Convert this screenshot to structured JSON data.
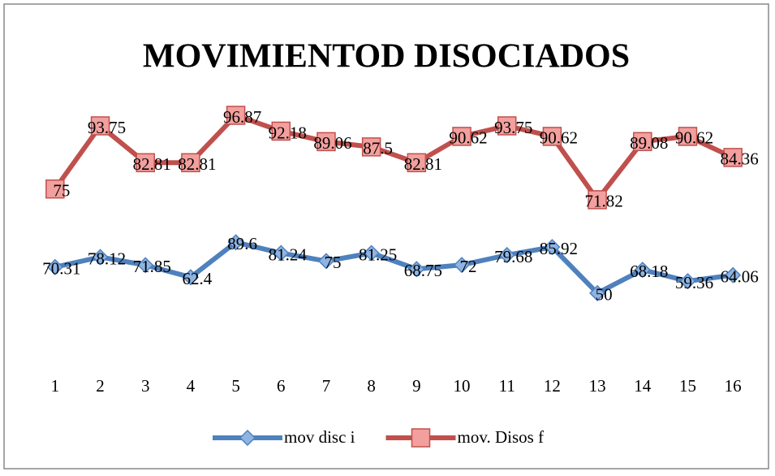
{
  "chart_data": {
    "type": "line",
    "title": "MOVIMIENTOD DISOCIADOS",
    "categories": [
      "1",
      "2",
      "3",
      "4",
      "5",
      "6",
      "7",
      "8",
      "9",
      "10",
      "11",
      "12",
      "13",
      "14",
      "15",
      "16"
    ],
    "series": [
      {
        "name": "mov disc i",
        "color": "#4f81bd",
        "marker": "diamond",
        "values": [
          70.31,
          78.12,
          71.85,
          62.4,
          89.6,
          81.24,
          75,
          81.25,
          68.75,
          72,
          79.68,
          85.92,
          50,
          68.18,
          59.36,
          64.06
        ]
      },
      {
        "name": "mov. Disos f",
        "color": "#c0504d",
        "marker": "square",
        "axis": "y2",
        "values": [
          75,
          93.75,
          82.81,
          82.81,
          96.87,
          92.18,
          89.06,
          87.5,
          82.81,
          90.62,
          93.75,
          90.62,
          71.82,
          89.08,
          90.62,
          84.36
        ]
      }
    ],
    "ylim": [
      0,
      215
    ],
    "y2lim": [
      25,
      107
    ],
    "legend": "bottom",
    "data_labels": true
  }
}
